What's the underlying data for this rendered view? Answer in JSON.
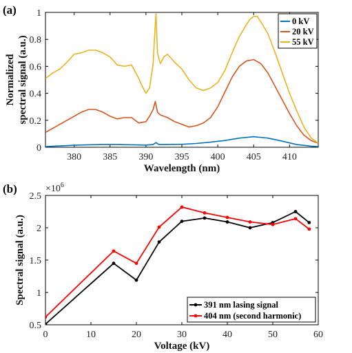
{
  "chart_data": [
    {
      "type": "line",
      "panel_label": "(a)",
      "xlabel": "Wavelength (nm)",
      "ylabel": [
        "Normalized",
        "spectral signal (a.u.)"
      ],
      "xlim": [
        376,
        414
      ],
      "ylim": [
        0,
        1
      ],
      "xticks": [
        380,
        385,
        390,
        395,
        400,
        405,
        410
      ],
      "yticks": [
        0,
        0.2,
        0.4,
        0.6,
        0.8,
        1
      ],
      "ytick_labels": [
        "0",
        "0.2",
        "0.4",
        "0.6",
        "0.8",
        "1"
      ],
      "grid": false,
      "legend_position": "top-right",
      "series": [
        {
          "name": "0 kV",
          "color": "#0072BD",
          "x": [
            376,
            378,
            380,
            382,
            384,
            386,
            388,
            390,
            391,
            391.4,
            391.8,
            393,
            395,
            397,
            399,
            401,
            403,
            405,
            407,
            409,
            411,
            413,
            414
          ],
          "y": [
            0.005,
            0.01,
            0.015,
            0.018,
            0.02,
            0.02,
            0.018,
            0.016,
            0.02,
            0.035,
            0.02,
            0.02,
            0.022,
            0.028,
            0.038,
            0.05,
            0.068,
            0.078,
            0.068,
            0.045,
            0.02,
            0.008,
            0.005
          ]
        },
        {
          "name": "20 kV",
          "color": "#D95319",
          "x": [
            376,
            377,
            378,
            379,
            380,
            381,
            382,
            383,
            384,
            385,
            386,
            387,
            388,
            389,
            390,
            390.5,
            391,
            391.3,
            391.6,
            392,
            393,
            394,
            395,
            396,
            397,
            398,
            399,
            400,
            401,
            402,
            403,
            404,
            405,
            406,
            407,
            408,
            409,
            410,
            411,
            412,
            413,
            414
          ],
          "y": [
            0.11,
            0.14,
            0.17,
            0.2,
            0.23,
            0.26,
            0.28,
            0.28,
            0.26,
            0.23,
            0.21,
            0.22,
            0.22,
            0.18,
            0.19,
            0.23,
            0.28,
            0.34,
            0.26,
            0.24,
            0.22,
            0.19,
            0.17,
            0.15,
            0.16,
            0.18,
            0.22,
            0.3,
            0.41,
            0.52,
            0.6,
            0.64,
            0.65,
            0.62,
            0.55,
            0.45,
            0.35,
            0.25,
            0.16,
            0.09,
            0.05,
            0.03
          ]
        },
        {
          "name": "55 kV",
          "color": "#EDB120",
          "x": [
            376,
            377,
            378,
            379,
            380,
            381,
            382,
            383,
            384,
            385,
            386,
            387,
            388,
            389,
            389.5,
            390,
            390.5,
            391,
            391.2,
            391.4,
            391.6,
            392,
            392.5,
            393,
            394,
            395,
            396,
            397,
            398,
            399,
            400,
            401,
            402,
            403,
            404,
            404.5,
            405,
            405.5,
            406,
            407,
            408,
            409,
            410,
            411,
            412,
            413,
            414
          ],
          "y": [
            0.51,
            0.55,
            0.58,
            0.63,
            0.69,
            0.7,
            0.72,
            0.72,
            0.7,
            0.67,
            0.61,
            0.6,
            0.61,
            0.51,
            0.45,
            0.4,
            0.44,
            0.62,
            0.82,
            0.99,
            0.7,
            0.62,
            0.67,
            0.69,
            0.63,
            0.58,
            0.5,
            0.44,
            0.42,
            0.44,
            0.48,
            0.57,
            0.7,
            0.82,
            0.91,
            0.95,
            0.97,
            0.97,
            0.93,
            0.84,
            0.7,
            0.55,
            0.4,
            0.27,
            0.15,
            0.07,
            0.03
          ]
        }
      ]
    },
    {
      "type": "line",
      "panel_label": "(b)",
      "xlabel": "Voltage (kV)",
      "ylabel": [
        "Spectral signal (a.u.)"
      ],
      "xlim": [
        0,
        60
      ],
      "ylim": [
        0.5,
        2.5
      ],
      "xticks": [
        0,
        10,
        20,
        30,
        40,
        50,
        60
      ],
      "yticks": [
        0.5,
        1,
        1.5,
        2,
        2.5
      ],
      "ytick_labels": [
        "0.5",
        "1",
        "1.5",
        "2",
        "2.5"
      ],
      "scale_label_base": "×10",
      "scale_label_exp": "6",
      "grid": false,
      "legend_position": "bottom-right",
      "series": [
        {
          "name": "391 nm lasing signal",
          "color": "#000000",
          "x": [
            0,
            15,
            20,
            25,
            30,
            35,
            40,
            45,
            50,
            55,
            58
          ],
          "y": [
            0.51,
            1.45,
            1.19,
            1.78,
            2.1,
            2.15,
            2.09,
            2.0,
            2.08,
            2.25,
            2.08
          ]
        },
        {
          "name": "404 nm (second harmonic)",
          "color": "#FF0000",
          "x": [
            0,
            15,
            20,
            25,
            30,
            35,
            40,
            45,
            50,
            55,
            58
          ],
          "y": [
            0.62,
            1.64,
            1.45,
            2.01,
            2.32,
            2.23,
            2.16,
            2.09,
            2.05,
            2.14,
            1.98
          ]
        }
      ]
    }
  ]
}
